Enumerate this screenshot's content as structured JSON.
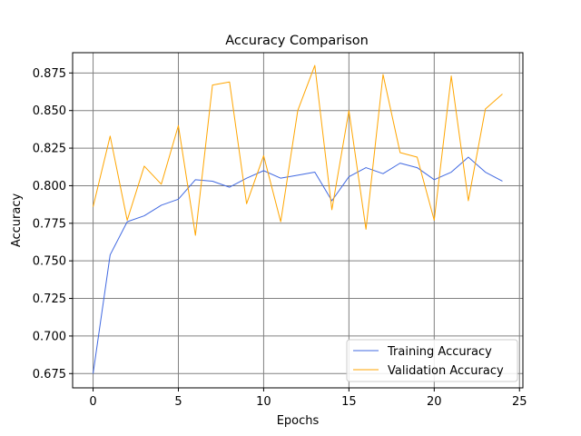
{
  "chart_data": {
    "type": "line",
    "title": "Accuracy Comparison",
    "xlabel": "Epochs",
    "ylabel": "Accuracy",
    "xlim": [
      -1.2,
      25.2
    ],
    "ylim": [
      0.6655,
      0.8885
    ],
    "x_ticks": [
      0,
      5,
      10,
      15,
      20,
      25
    ],
    "x_tick_labels": [
      "0",
      "5",
      "10",
      "15",
      "20",
      "25"
    ],
    "y_ticks": [
      0.675,
      0.7,
      0.725,
      0.75,
      0.775,
      0.8,
      0.825,
      0.85,
      0.875
    ],
    "y_tick_labels": [
      "0.675",
      "0.700",
      "0.725",
      "0.750",
      "0.775",
      "0.800",
      "0.825",
      "0.850",
      "0.875"
    ],
    "grid": true,
    "legend_position": "lower-right",
    "x": [
      0,
      1,
      2,
      3,
      4,
      5,
      6,
      7,
      8,
      9,
      10,
      11,
      12,
      13,
      14,
      15,
      16,
      17,
      18,
      19,
      20,
      21,
      22,
      23,
      24
    ],
    "series": [
      {
        "name": "Training Accuracy",
        "color": "#4169e1",
        "values": [
          0.675,
          0.754,
          0.776,
          0.78,
          0.787,
          0.791,
          0.804,
          0.803,
          0.799,
          0.805,
          0.81,
          0.805,
          0.807,
          0.809,
          0.79,
          0.806,
          0.812,
          0.808,
          0.815,
          0.812,
          0.804,
          0.809,
          0.819,
          0.809,
          0.803
        ]
      },
      {
        "name": "Validation Accuracy",
        "color": "#ffa500",
        "values": [
          0.786,
          0.833,
          0.777,
          0.813,
          0.801,
          0.84,
          0.767,
          0.867,
          0.869,
          0.788,
          0.82,
          0.776,
          0.85,
          0.88,
          0.784,
          0.85,
          0.771,
          0.874,
          0.822,
          0.819,
          0.777,
          0.873,
          0.79,
          0.851,
          0.861
        ]
      }
    ]
  }
}
